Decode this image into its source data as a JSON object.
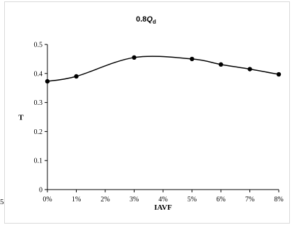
{
  "chart_data": {
    "type": "line",
    "title_main": "0.8",
    "title_q": "Q",
    "title_sub": "d",
    "xlabel": "IAVF",
    "ylabel": "T",
    "categories": [
      "0%",
      "1%",
      "2%",
      "3%",
      "4%",
      "5%",
      "6%",
      "7%",
      "8%"
    ],
    "points": [
      {
        "x": 0,
        "y": 0.373
      },
      {
        "x": 1,
        "y": 0.39
      },
      {
        "x": 3,
        "y": 0.455
      },
      {
        "x": 5,
        "y": 0.45
      },
      {
        "x": 6,
        "y": 0.431
      },
      {
        "x": 7,
        "y": 0.415
      },
      {
        "x": 8,
        "y": 0.397
      }
    ],
    "ylim": [
      0,
      0.5
    ],
    "yticks": [
      "0",
      "0.1",
      "0.2",
      "0.3",
      "0.4",
      "0.5"
    ],
    "line_color": "#000000",
    "grid": false,
    "smooth": true
  },
  "stray_char": "5"
}
